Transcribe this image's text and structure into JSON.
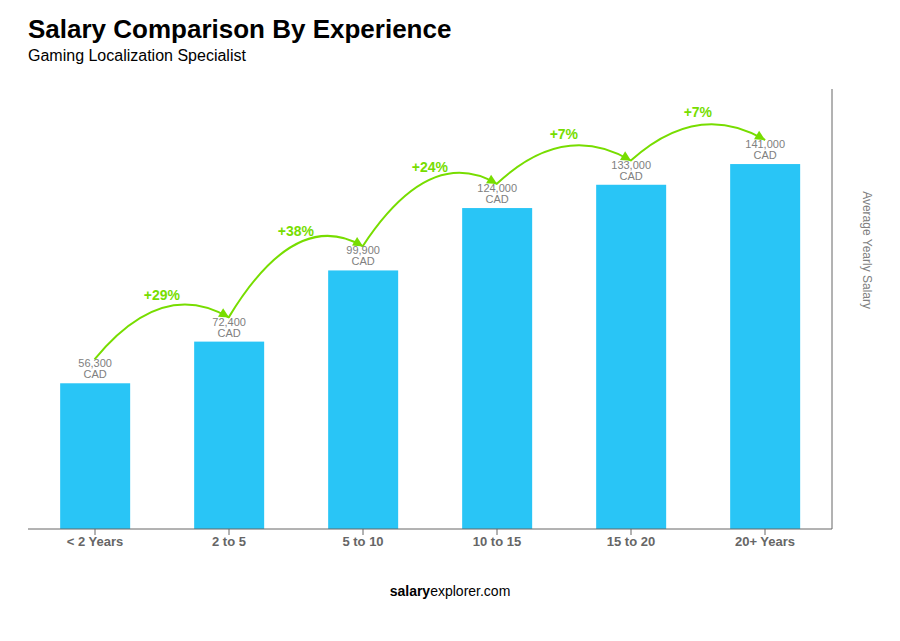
{
  "chart_data": {
    "type": "bar",
    "title": "Salary Comparison By Experience",
    "subtitle": "Gaming Localization Specialist",
    "categories": [
      "< 2 Years",
      "2 to 5",
      "5 to 10",
      "10 to 15",
      "15 to 20",
      "20+ Years"
    ],
    "values": [
      56300,
      72400,
      99900,
      124000,
      133000,
      141000
    ],
    "value_labels": [
      "56,300 CAD",
      "72,400 CAD",
      "99,900 CAD",
      "124,000 CAD",
      "133,000 CAD",
      "141,000 CAD"
    ],
    "data_labels": true,
    "color": "#29c5f6",
    "ylim": [
      0,
      170000
    ],
    "tick_labels": "x",
    "grid": false,
    "ylabel": "Average Yearly Salary",
    "annotations": [
      {
        "text": "+29%",
        "from": "< 2 Years",
        "to": "2 to 5",
        "color": "#77dd00"
      },
      {
        "text": "+38%",
        "from": "2 to 5",
        "to": "5 to 10",
        "color": "#77dd00"
      },
      {
        "text": "+24%",
        "from": "5 to 10",
        "to": "10 to 15",
        "color": "#77dd00"
      },
      {
        "text": "+7%",
        "from": "10 to 15",
        "to": "15 to 20",
        "color": "#77dd00"
      },
      {
        "text": "+7%",
        "from": "15 to 20",
        "to": "20+ Years",
        "color": "#77dd00"
      }
    ],
    "watermark": [
      "salary",
      "explorer.com"
    ]
  }
}
